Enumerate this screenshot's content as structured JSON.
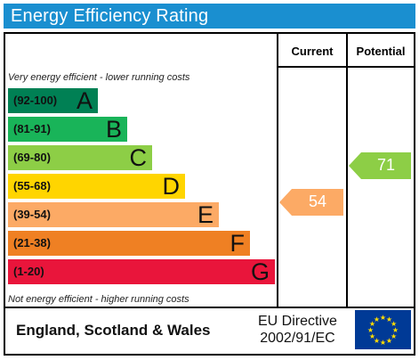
{
  "title": "Energy Efficiency Rating",
  "columns": {
    "current": "Current",
    "potential": "Potential"
  },
  "notes": {
    "top": "Very energy efficient - lower running costs",
    "bottom": "Not energy efficient - higher running costs"
  },
  "bands": [
    {
      "range": "(92-100)",
      "letter": "A",
      "color": "#008054"
    },
    {
      "range": "(81-91)",
      "letter": "B",
      "color": "#19b459"
    },
    {
      "range": "(69-80)",
      "letter": "C",
      "color": "#8dce46"
    },
    {
      "range": "(55-68)",
      "letter": "D",
      "color": "#ffd500"
    },
    {
      "range": "(39-54)",
      "letter": "E",
      "color": "#fcaa65"
    },
    {
      "range": "(21-38)",
      "letter": "F",
      "color": "#ef8023"
    },
    {
      "range": "(1-20)",
      "letter": "G",
      "color": "#e9153b"
    }
  ],
  "ratings": {
    "current": {
      "value": "54",
      "color": "#fcaa65"
    },
    "potential": {
      "value": "71",
      "color": "#8dce46"
    }
  },
  "footer": {
    "region": "England, Scotland & Wales",
    "directive_line1": "EU Directive",
    "directive_line2": "2002/91/EC",
    "flag_icon": "eu-flag-icon"
  }
}
